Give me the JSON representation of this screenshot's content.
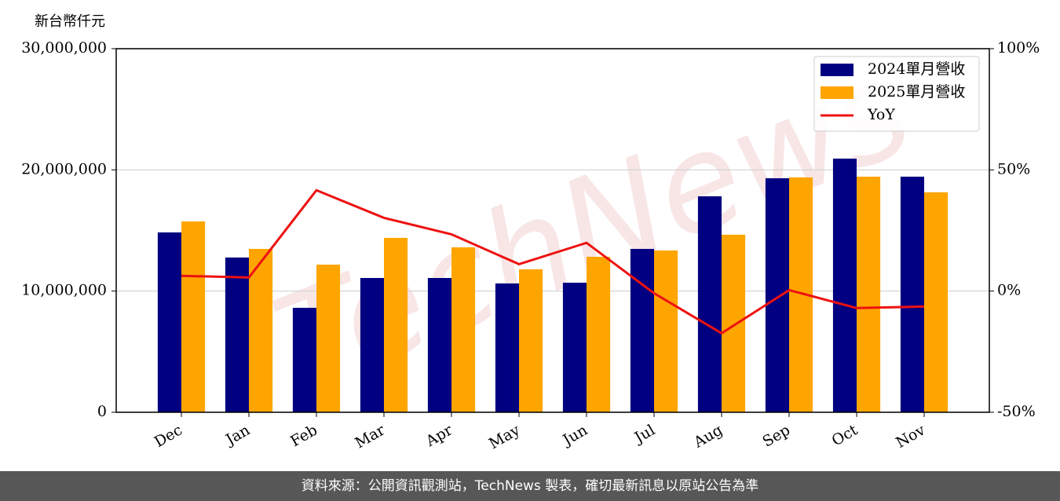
{
  "chart_data": {
    "type": "bar",
    "y_label": "新台幣仟元",
    "watermark": "TechNews",
    "source": "資料來源：公開資訊觀測站，TechNews 製表，確切最新訊息以原站公告為準",
    "categories": [
      "Dec",
      "Jan",
      "Feb",
      "Mar",
      "Apr",
      "May",
      "Jun",
      "Jul",
      "Aug",
      "Sep",
      "Oct",
      "Nov"
    ],
    "series": [
      {
        "name": "2024單月營收",
        "color": "#000080",
        "values": [
          14840000,
          12770000,
          8620000,
          11080000,
          11080000,
          10630000,
          10690000,
          13480000,
          17820000,
          19310000,
          20930000,
          19440000
        ]
      },
      {
        "name": "2025單月營收",
        "color": "#ffa500",
        "values": [
          15750000,
          13480000,
          12180000,
          14390000,
          13610000,
          11800000,
          12830000,
          13350000,
          14650000,
          19380000,
          19440000,
          18150000
        ]
      },
      {
        "name": "YoY",
        "color": "#ee1111",
        "type": "line",
        "axis": "y2",
        "values": [
          6.3,
          5.6,
          41.6,
          30.2,
          23.4,
          11.1,
          19.9,
          -0.9,
          -17.4,
          0.4,
          -7.0,
          -6.4
        ]
      }
    ],
    "ylim": [
      0,
      30000000
    ],
    "yticks": [
      0,
      {
        "value": 10000000,
        "label": "10,000,000"
      },
      {
        "value": 20000000,
        "label": "20,000,000"
      },
      {
        "value": 30000000,
        "label": "30,000,000"
      }
    ],
    "y2lim": [
      -50,
      100
    ],
    "y2ticks": [
      {
        "value": -50,
        "label": "-50%"
      },
      {
        "value": 0,
        "label": "0%"
      },
      {
        "value": 50,
        "label": "50%"
      },
      {
        "value": 100,
        "label": "100%"
      }
    ],
    "grid": true,
    "legend": "upper right"
  }
}
